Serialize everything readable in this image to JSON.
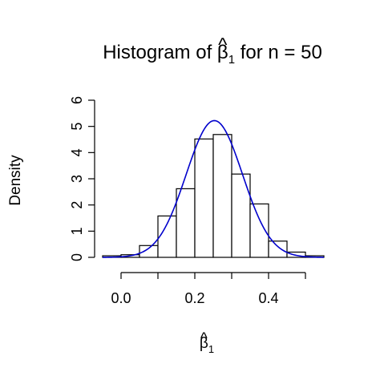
{
  "chart_data": {
    "type": "bar",
    "title_prefix": "Histogram of ",
    "title_symbol": "β",
    "title_hat": "^",
    "title_subscript": "1",
    "title_suffix": " for n = 50",
    "xlabel_symbol": "β",
    "xlabel_hat": "^",
    "xlabel_subscript": "1",
    "ylabel": "Density",
    "xlim": [
      -0.05,
      0.55
    ],
    "ylim": [
      0,
      6
    ],
    "x_ticks": [
      0.0,
      0.1,
      0.2,
      0.3,
      0.4,
      0.5
    ],
    "x_tick_labels": [
      "0.0",
      "",
      "0.2",
      "",
      "0.4",
      ""
    ],
    "y_ticks": [
      0,
      1,
      2,
      3,
      4,
      5,
      6
    ],
    "y_tick_labels": [
      "0",
      "1",
      "2",
      "3",
      "4",
      "5",
      "6"
    ],
    "bins": [
      {
        "x0": -0.05,
        "x1": 0.0,
        "density": 0.06
      },
      {
        "x0": 0.0,
        "x1": 0.05,
        "density": 0.1
      },
      {
        "x0": 0.05,
        "x1": 0.1,
        "density": 0.45
      },
      {
        "x0": 0.1,
        "x1": 0.15,
        "density": 1.58
      },
      {
        "x0": 0.15,
        "x1": 0.2,
        "density": 2.62
      },
      {
        "x0": 0.2,
        "x1": 0.25,
        "density": 4.52
      },
      {
        "x0": 0.25,
        "x1": 0.3,
        "density": 4.69
      },
      {
        "x0": 0.3,
        "x1": 0.35,
        "density": 3.18
      },
      {
        "x0": 0.35,
        "x1": 0.4,
        "density": 2.04
      },
      {
        "x0": 0.4,
        "x1": 0.45,
        "density": 0.62
      },
      {
        "x0": 0.45,
        "x1": 0.5,
        "density": 0.2
      },
      {
        "x0": 0.5,
        "x1": 0.55,
        "density": 0.06
      }
    ],
    "density_curve": {
      "type": "normal",
      "mean": 0.253,
      "sd": 0.0764,
      "color": "#0000cc"
    },
    "bar_fill": "#ffffff",
    "bar_stroke": "#000000",
    "grid": false
  }
}
